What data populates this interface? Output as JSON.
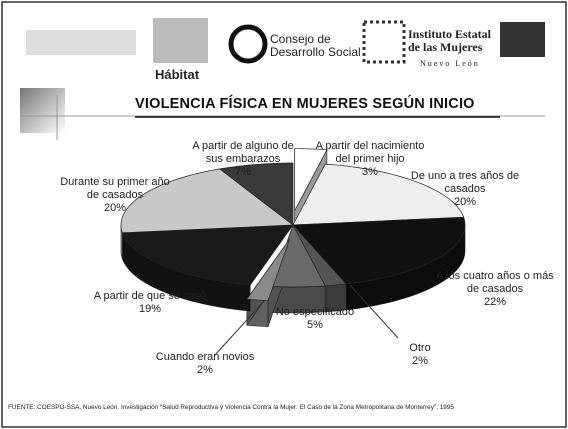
{
  "header": {
    "logos": [
      "Hábitat",
      "Consejo de Desarrollo Social",
      "Instituto Estatal de las Mujeres",
      "Nuevo León"
    ]
  },
  "chart_data": {
    "type": "pie",
    "title": "VIOLENCIA FÍSICA EN MUJERES SEGÚN INICIO",
    "categories": [
      "A partir del nacimiento del primer hijo",
      "De uno a tres años de casados",
      "A los cuatro años o más de casados",
      "Otro",
      "No especificado",
      "Cuando eran novios",
      "A partir de que se casó",
      "Durante su primer año de casados",
      "A partir de alguno de sus embarazos"
    ],
    "values": [
      3,
      20,
      22,
      2,
      5,
      2,
      19,
      20,
      7
    ],
    "value_labels": [
      "3%",
      "20%",
      "22%",
      "2%",
      "5%",
      "2%",
      "19%",
      "20%",
      "7%"
    ],
    "colors": [
      "#ffffff",
      "#eeeeee",
      "#111111",
      "#555555",
      "#6a6a6a",
      "#8a8a8a",
      "#1a1a1a",
      "#c8c8c8",
      "#3a3a3a"
    ],
    "exploded": [
      0,
      5
    ],
    "source": "FUENTE: COESPO-SSA, Nuevo León. Investigación \"Salud Reproductiva y Violencia Contra la Mujer: El Caso de la Zona Metropolitana de Monterrey\", 1995"
  }
}
